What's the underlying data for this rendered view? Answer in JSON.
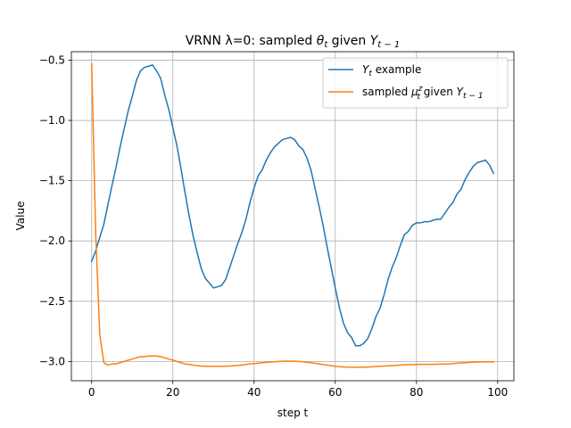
{
  "chart_data": {
    "type": "line",
    "title_prefix": "VRNN λ=0: sampled ",
    "title_theta": "θ",
    "title_theta_sub": "t",
    "title_mid": " given ",
    "title_Y": "Y",
    "title_Y_sub": "t − 1",
    "xlabel": "step t",
    "ylabel": "Value",
    "xlim": [
      -5,
      104
    ],
    "ylim": [
      -3.16,
      -0.43
    ],
    "xticks": [
      0,
      20,
      40,
      60,
      80,
      100
    ],
    "xtick_labels": [
      "0",
      "20",
      "40",
      "60",
      "80",
      "100"
    ],
    "yticks": [
      -3.0,
      -2.5,
      -2.0,
      -1.5,
      -1.0,
      -0.5
    ],
    "ytick_labels": [
      "−3.0",
      "−2.5",
      "−2.0",
      "−1.5",
      "−1.0",
      "−0.5"
    ],
    "grid": true,
    "legend_position": "upper right",
    "series": [
      {
        "name": "Y_t example",
        "legend_main": "Y",
        "legend_sub": "t",
        "legend_rest": " example",
        "color": "#1f77b4",
        "x": [
          0,
          1,
          2,
          3,
          4,
          5,
          6,
          7,
          8,
          9,
          10,
          11,
          12,
          13,
          14,
          15,
          16,
          17,
          18,
          19,
          20,
          21,
          22,
          23,
          24,
          25,
          26,
          27,
          28,
          29,
          30,
          31,
          32,
          33,
          34,
          35,
          36,
          37,
          38,
          39,
          40,
          41,
          42,
          43,
          44,
          45,
          46,
          47,
          48,
          49,
          50,
          51,
          52,
          53,
          54,
          55,
          56,
          57,
          58,
          59,
          60,
          61,
          62,
          63,
          64,
          65,
          66,
          67,
          68,
          69,
          70,
          71,
          72,
          73,
          74,
          75,
          76,
          77,
          78,
          79,
          80,
          81,
          82,
          83,
          84,
          85,
          86,
          87,
          88,
          89,
          90,
          91,
          92,
          93,
          94,
          95,
          96,
          97,
          98,
          99
        ],
        "y": [
          -2.17,
          -2.08,
          -1.97,
          -1.86,
          -1.7,
          -1.54,
          -1.39,
          -1.22,
          -1.07,
          -0.92,
          -0.8,
          -0.67,
          -0.59,
          -0.56,
          -0.55,
          -0.54,
          -0.59,
          -0.65,
          -0.79,
          -0.91,
          -1.06,
          -1.21,
          -1.4,
          -1.6,
          -1.79,
          -1.96,
          -2.1,
          -2.23,
          -2.31,
          -2.35,
          -2.39,
          -2.38,
          -2.37,
          -2.32,
          -2.22,
          -2.12,
          -2.02,
          -1.93,
          -1.82,
          -1.68,
          -1.56,
          -1.46,
          -1.41,
          -1.33,
          -1.27,
          -1.22,
          -1.19,
          -1.16,
          -1.15,
          -1.14,
          -1.16,
          -1.21,
          -1.24,
          -1.31,
          -1.41,
          -1.56,
          -1.71,
          -1.87,
          -2.05,
          -2.22,
          -2.39,
          -2.55,
          -2.68,
          -2.76,
          -2.8,
          -2.87,
          -2.87,
          -2.85,
          -2.81,
          -2.73,
          -2.63,
          -2.56,
          -2.45,
          -2.32,
          -2.22,
          -2.14,
          -2.04,
          -1.95,
          -1.92,
          -1.87,
          -1.85,
          -1.85,
          -1.84,
          -1.84,
          -1.83,
          -1.82,
          -1.82,
          -1.77,
          -1.72,
          -1.68,
          -1.61,
          -1.57,
          -1.49,
          -1.43,
          -1.38,
          -1.35,
          -1.34,
          -1.33,
          -1.37,
          -1.44
        ]
      },
      {
        "name": "sampled mu_t^z given Y_{t-1}",
        "legend_prefix": "sampled ",
        "legend_main": "μ",
        "legend_sup": "z",
        "legend_sub": "t",
        "legend_rest": " given ",
        "legend_Y": "Y",
        "legend_Y_sub": "t − 1",
        "color": "#ff7f0e",
        "x": [
          0,
          1,
          2,
          3,
          4,
          5,
          6,
          7,
          8,
          9,
          10,
          11,
          12,
          13,
          14,
          15,
          16,
          17,
          18,
          19,
          20,
          21,
          22,
          23,
          24,
          25,
          26,
          27,
          28,
          29,
          30,
          31,
          32,
          33,
          34,
          35,
          36,
          37,
          38,
          39,
          40,
          41,
          42,
          43,
          44,
          45,
          46,
          47,
          48,
          49,
          50,
          51,
          52,
          53,
          54,
          55,
          56,
          57,
          58,
          59,
          60,
          61,
          62,
          63,
          64,
          65,
          66,
          67,
          68,
          69,
          70,
          71,
          72,
          73,
          74,
          75,
          76,
          77,
          78,
          79,
          80,
          81,
          82,
          83,
          84,
          85,
          86,
          87,
          88,
          89,
          90,
          91,
          92,
          93,
          94,
          95,
          96,
          97,
          98,
          99
        ],
        "y": [
          -0.53,
          -1.95,
          -2.78,
          -3.01,
          -3.03,
          -3.02,
          -3.02,
          -3.01,
          -3.0,
          -2.99,
          -2.98,
          -2.97,
          -2.96,
          -2.96,
          -2.955,
          -2.955,
          -2.955,
          -2.96,
          -2.97,
          -2.98,
          -2.99,
          -3.0,
          -3.01,
          -3.02,
          -3.025,
          -3.03,
          -3.035,
          -3.038,
          -3.04,
          -3.04,
          -3.04,
          -3.04,
          -3.04,
          -3.04,
          -3.038,
          -3.035,
          -3.032,
          -3.03,
          -3.025,
          -3.02,
          -3.018,
          -3.015,
          -3.01,
          -3.007,
          -3.005,
          -3.003,
          -3.0,
          -2.998,
          -2.997,
          -2.997,
          -2.998,
          -3.0,
          -3.003,
          -3.007,
          -3.01,
          -3.015,
          -3.02,
          -3.025,
          -3.03,
          -3.035,
          -3.04,
          -3.043,
          -3.045,
          -3.047,
          -3.048,
          -3.048,
          -3.048,
          -3.048,
          -3.046,
          -3.044,
          -3.042,
          -3.04,
          -3.038,
          -3.036,
          -3.034,
          -3.032,
          -3.03,
          -3.028,
          -3.027,
          -3.026,
          -3.025,
          -3.024,
          -3.024,
          -3.024,
          -3.024,
          -3.023,
          -3.022,
          -3.021,
          -3.02,
          -3.018,
          -3.015,
          -3.012,
          -3.01,
          -3.008,
          -3.006,
          -3.005,
          -3.004,
          -3.004,
          -3.004,
          -3.004
        ]
      }
    ]
  }
}
